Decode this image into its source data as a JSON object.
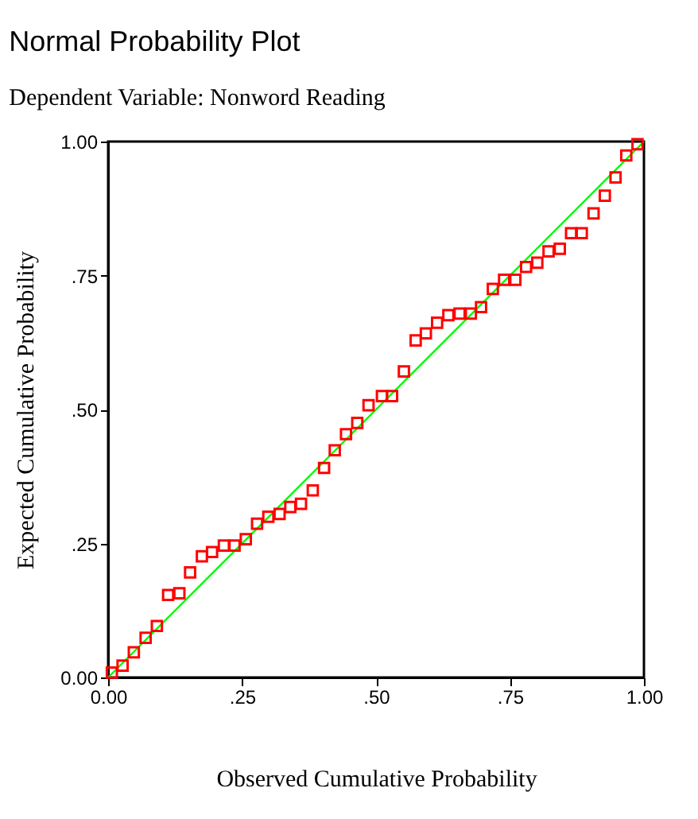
{
  "chart_data": {
    "type": "scatter",
    "title": "Normal Probability Plot",
    "subtitle": "Dependent Variable: Nonword Reading",
    "xlabel": "Observed Cumulative Probability",
    "ylabel": "Expected Cumulative Probability",
    "xlim": [
      0,
      1
    ],
    "ylim": [
      0,
      1
    ],
    "xticks": [
      {
        "value": 0,
        "label": "0.00"
      },
      {
        "value": 0.25,
        "label": ".25"
      },
      {
        "value": 0.5,
        "label": ".50"
      },
      {
        "value": 0.75,
        "label": ".75"
      },
      {
        "value": 1,
        "label": "1.00"
      }
    ],
    "yticks": [
      {
        "value": 0,
        "label": "0.00"
      },
      {
        "value": 0.25,
        "label": ".25"
      },
      {
        "value": 0.5,
        "label": ".50"
      },
      {
        "value": 0.75,
        "label": ".75"
      },
      {
        "value": 1,
        "label": "1.00"
      }
    ],
    "grid": false,
    "series": [
      {
        "type": "line",
        "color": "#00ff00",
        "marker": "none",
        "line_style": "solid",
        "x": [
          0,
          1
        ],
        "values": [
          0,
          1
        ]
      },
      {
        "color": "#ff0000",
        "marker": "square",
        "x": [
          0.007,
          0.027,
          0.048,
          0.07,
          0.091,
          0.112,
          0.133,
          0.153,
          0.175,
          0.194,
          0.216,
          0.236,
          0.257,
          0.278,
          0.299,
          0.32,
          0.34,
          0.36,
          0.382,
          0.403,
          0.423,
          0.444,
          0.465,
          0.486,
          0.511,
          0.53,
          0.552,
          0.574,
          0.593,
          0.614,
          0.635,
          0.656,
          0.677,
          0.696,
          0.718,
          0.739,
          0.76,
          0.78,
          0.801,
          0.822,
          0.843,
          0.864,
          0.884,
          0.906,
          0.927,
          0.947,
          0.967,
          0.988
        ],
        "values": [
          0.009,
          0.022,
          0.047,
          0.074,
          0.096,
          0.154,
          0.157,
          0.196,
          0.226,
          0.234,
          0.246,
          0.246,
          0.258,
          0.287,
          0.3,
          0.305,
          0.318,
          0.324,
          0.349,
          0.391,
          0.424,
          0.454,
          0.475,
          0.508,
          0.525,
          0.525,
          0.571,
          0.629,
          0.642,
          0.662,
          0.676,
          0.679,
          0.679,
          0.691,
          0.725,
          0.742,
          0.742,
          0.766,
          0.774,
          0.795,
          0.8,
          0.829,
          0.829,
          0.866,
          0.899,
          0.933,
          0.974,
          0.995
        ]
      }
    ]
  }
}
